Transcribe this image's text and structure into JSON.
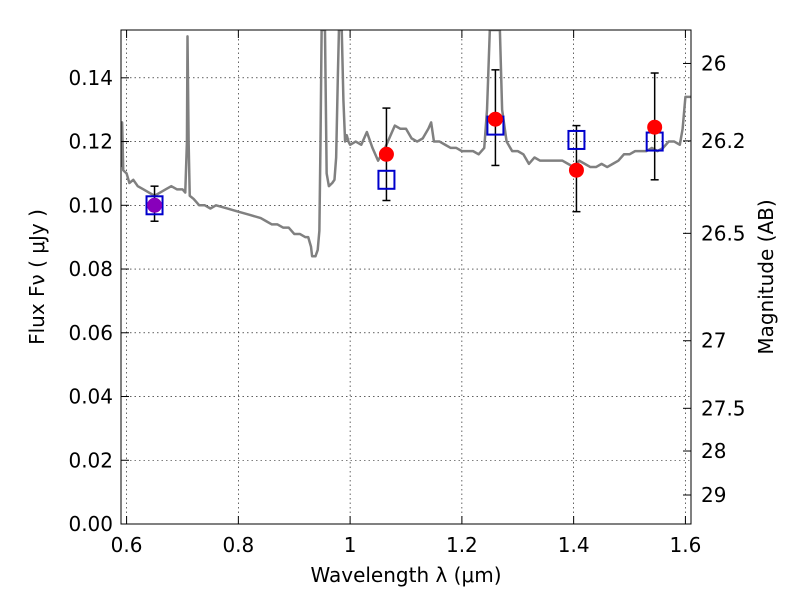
{
  "chart_data": {
    "type": "scatter",
    "xlabel": "Wavelength  λ (μm)",
    "ylabel": "Flux  Fν  ( μJy )",
    "ylabel_right": "Magnitude (AB)",
    "xlim": [
      0.59,
      1.61
    ],
    "ylim": [
      0.0,
      0.155
    ],
    "grid": true,
    "x_ticks": [
      {
        "value": 0.6,
        "label": "0.6"
      },
      {
        "value": 0.8,
        "label": "0.8"
      },
      {
        "value": 1.0,
        "label": "1"
      },
      {
        "value": 1.2,
        "label": "1.2"
      },
      {
        "value": 1.4,
        "label": "1.4"
      },
      {
        "value": 1.6,
        "label": "1.6"
      }
    ],
    "y_ticks": [
      {
        "value": 0.0,
        "label": "0.00"
      },
      {
        "value": 0.02,
        "label": "0.02"
      },
      {
        "value": 0.04,
        "label": "0.04"
      },
      {
        "value": 0.06,
        "label": "0.06"
      },
      {
        "value": 0.08,
        "label": "0.08"
      },
      {
        "value": 0.1,
        "label": "0.10"
      },
      {
        "value": 0.12,
        "label": "0.12"
      },
      {
        "value": 0.14,
        "label": "0.14"
      }
    ],
    "right_ticks": [
      {
        "flux": 0.1445,
        "label": "26"
      },
      {
        "flux": 0.1202,
        "label": "26.2"
      },
      {
        "flux": 0.0912,
        "label": "26.5"
      },
      {
        "flux": 0.0575,
        "label": "27"
      },
      {
        "flux": 0.0363,
        "label": "27.5"
      },
      {
        "flux": 0.0229,
        "label": "28"
      },
      {
        "flux": 0.0091,
        "label": "29"
      }
    ],
    "series": [
      {
        "kind": "spectrum",
        "color": "#808080",
        "points": [
          [
            0.59,
            0.112
          ],
          [
            0.592,
            0.126
          ],
          [
            0.594,
            0.111
          ],
          [
            0.6,
            0.11
          ],
          [
            0.605,
            0.107
          ],
          [
            0.612,
            0.108
          ],
          [
            0.62,
            0.106
          ],
          [
            0.63,
            0.105
          ],
          [
            0.64,
            0.104
          ],
          [
            0.65,
            0.103
          ],
          [
            0.66,
            0.104
          ],
          [
            0.67,
            0.105
          ],
          [
            0.68,
            0.106
          ],
          [
            0.69,
            0.105
          ],
          [
            0.7,
            0.105
          ],
          [
            0.705,
            0.104
          ],
          [
            0.708,
            0.12
          ],
          [
            0.709,
            0.153
          ],
          [
            0.711,
            0.12
          ],
          [
            0.713,
            0.103
          ],
          [
            0.72,
            0.102
          ],
          [
            0.73,
            0.1
          ],
          [
            0.74,
            0.1
          ],
          [
            0.75,
            0.099
          ],
          [
            0.76,
            0.1
          ],
          [
            0.78,
            0.099
          ],
          [
            0.8,
            0.098
          ],
          [
            0.82,
            0.097
          ],
          [
            0.84,
            0.096
          ],
          [
            0.85,
            0.095
          ],
          [
            0.86,
            0.094
          ],
          [
            0.87,
            0.094
          ],
          [
            0.88,
            0.093
          ],
          [
            0.89,
            0.093
          ],
          [
            0.9,
            0.091
          ],
          [
            0.91,
            0.091
          ],
          [
            0.92,
            0.09
          ],
          [
            0.925,
            0.09
          ],
          [
            0.93,
            0.087
          ],
          [
            0.932,
            0.084
          ],
          [
            0.938,
            0.084
          ],
          [
            0.942,
            0.086
          ],
          [
            0.945,
            0.092
          ],
          [
            0.947,
            0.12
          ],
          [
            0.949,
            0.155
          ],
          [
            0.955,
            0.155
          ],
          [
            0.958,
            0.11
          ],
          [
            0.962,
            0.106
          ],
          [
            0.968,
            0.107
          ],
          [
            0.972,
            0.108
          ],
          [
            0.975,
            0.115
          ],
          [
            0.978,
            0.14
          ],
          [
            0.98,
            0.155
          ],
          [
            0.985,
            0.155
          ],
          [
            0.988,
            0.133
          ],
          [
            0.991,
            0.12
          ],
          [
            0.994,
            0.122
          ],
          [
            0.997,
            0.12
          ],
          [
            1.0,
            0.119
          ],
          [
            1.01,
            0.12
          ],
          [
            1.02,
            0.119
          ],
          [
            1.03,
            0.123
          ],
          [
            1.04,
            0.118
          ],
          [
            1.05,
            0.114
          ],
          [
            1.06,
            0.117
          ],
          [
            1.075,
            0.123
          ],
          [
            1.08,
            0.125
          ],
          [
            1.09,
            0.124
          ],
          [
            1.1,
            0.124
          ],
          [
            1.11,
            0.121
          ],
          [
            1.12,
            0.12
          ],
          [
            1.13,
            0.121
          ],
          [
            1.14,
            0.124
          ],
          [
            1.145,
            0.126
          ],
          [
            1.15,
            0.12
          ],
          [
            1.16,
            0.12
          ],
          [
            1.17,
            0.119
          ],
          [
            1.18,
            0.118
          ],
          [
            1.19,
            0.118
          ],
          [
            1.2,
            0.117
          ],
          [
            1.21,
            0.117
          ],
          [
            1.22,
            0.117
          ],
          [
            1.23,
            0.116
          ],
          [
            1.24,
            0.118
          ],
          [
            1.245,
            0.13
          ],
          [
            1.25,
            0.155
          ],
          [
            1.268,
            0.155
          ],
          [
            1.272,
            0.13
          ],
          [
            1.28,
            0.12
          ],
          [
            1.29,
            0.117
          ],
          [
            1.3,
            0.117
          ],
          [
            1.31,
            0.116
          ],
          [
            1.32,
            0.113
          ],
          [
            1.33,
            0.115
          ],
          [
            1.34,
            0.114
          ],
          [
            1.35,
            0.114
          ],
          [
            1.36,
            0.114
          ],
          [
            1.37,
            0.114
          ],
          [
            1.38,
            0.114
          ],
          [
            1.39,
            0.113
          ],
          [
            1.4,
            0.112
          ],
          [
            1.41,
            0.114
          ],
          [
            1.42,
            0.113
          ],
          [
            1.43,
            0.112
          ],
          [
            1.44,
            0.112
          ],
          [
            1.45,
            0.113
          ],
          [
            1.46,
            0.112
          ],
          [
            1.47,
            0.113
          ],
          [
            1.48,
            0.114
          ],
          [
            1.49,
            0.116
          ],
          [
            1.5,
            0.116
          ],
          [
            1.51,
            0.117
          ],
          [
            1.52,
            0.117
          ],
          [
            1.53,
            0.117
          ],
          [
            1.54,
            0.118
          ],
          [
            1.55,
            0.117
          ],
          [
            1.56,
            0.118
          ],
          [
            1.57,
            0.12
          ],
          [
            1.58,
            0.12
          ],
          [
            1.59,
            0.119
          ],
          [
            1.595,
            0.124
          ],
          [
            1.6,
            0.134
          ],
          [
            1.61,
            0.134
          ]
        ]
      },
      {
        "kind": "observed",
        "color": "#ff0000",
        "points": [
          {
            "x": 0.65,
            "y": 0.1,
            "yerr_low": 0.095,
            "yerr_high": 0.106
          },
          {
            "x": 1.065,
            "y": 0.116,
            "yerr_low": 0.1015,
            "yerr_high": 0.1305
          },
          {
            "x": 1.26,
            "y": 0.127,
            "yerr_low": 0.1125,
            "yerr_high": 0.1425
          },
          {
            "x": 1.405,
            "y": 0.111,
            "yerr_low": 0.098,
            "yerr_high": 0.125
          },
          {
            "x": 1.545,
            "y": 0.1245,
            "yerr_low": 0.108,
            "yerr_high": 0.1415
          }
        ]
      },
      {
        "kind": "model",
        "color": "#0000cc",
        "points": [
          {
            "x": 0.65,
            "y": 0.1
          },
          {
            "x": 1.065,
            "y": 0.108
          },
          {
            "x": 1.26,
            "y": 0.125
          },
          {
            "x": 1.405,
            "y": 0.1205
          },
          {
            "x": 1.545,
            "y": 0.12
          }
        ]
      }
    ],
    "overlap_color": "#8800bb"
  }
}
